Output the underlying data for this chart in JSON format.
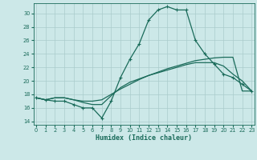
{
  "title": "",
  "xlabel": "Humidex (Indice chaleur)",
  "ylabel": "",
  "bg_color": "#cce8e8",
  "grid_color": "#aacccc",
  "line_color": "#1a6b5a",
  "x_ticks": [
    0,
    1,
    2,
    3,
    4,
    5,
    6,
    7,
    8,
    9,
    10,
    11,
    12,
    13,
    14,
    15,
    16,
    17,
    18,
    19,
    20,
    21,
    22,
    23
  ],
  "ylim": [
    13.5,
    31.5
  ],
  "xlim": [
    -0.3,
    23.3
  ],
  "yticks": [
    14,
    16,
    18,
    20,
    22,
    24,
    26,
    28,
    30
  ],
  "line1_y": [
    17.5,
    17.2,
    17.0,
    17.0,
    16.5,
    16.0,
    16.0,
    14.5,
    17.0,
    20.5,
    23.2,
    25.5,
    29.0,
    30.5,
    31.0,
    30.5,
    30.5,
    26.0,
    24.0,
    22.5,
    21.0,
    20.5,
    19.5,
    18.5
  ],
  "line2_y": [
    17.5,
    17.2,
    17.5,
    17.5,
    17.2,
    17.0,
    17.0,
    17.2,
    18.0,
    18.8,
    19.5,
    20.2,
    20.8,
    21.3,
    21.8,
    22.2,
    22.6,
    23.0,
    23.2,
    23.4,
    23.5,
    23.5,
    18.5,
    18.5
  ],
  "line3_y": [
    17.5,
    17.2,
    17.5,
    17.5,
    17.2,
    16.8,
    16.5,
    16.5,
    17.8,
    19.0,
    19.8,
    20.3,
    20.8,
    21.2,
    21.6,
    22.0,
    22.4,
    22.7,
    22.7,
    22.7,
    22.2,
    21.0,
    20.0,
    18.5
  ]
}
